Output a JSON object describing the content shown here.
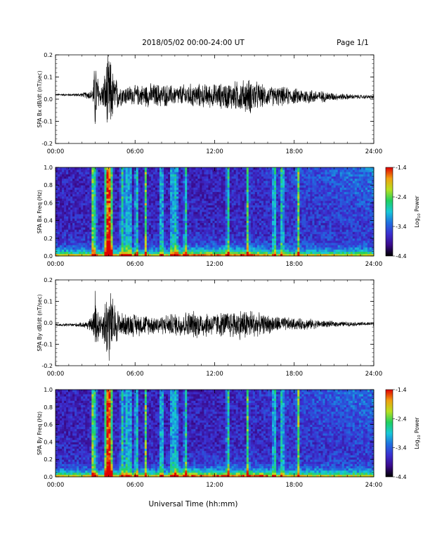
{
  "header": {
    "title": "2018/05/02  00:00-24:00 UT",
    "page": "Page 1/1"
  },
  "xlabel": "Universal Time (hh:mm)",
  "colors": {
    "trace": "#000000",
    "colormap": [
      "#000000",
      "#3a0a8a",
      "#3b2fd0",
      "#1f6fe0",
      "#18c8d8",
      "#20d060",
      "#b8e020",
      "#f0a010",
      "#e00000"
    ]
  },
  "chart_data": [
    {
      "type": "line",
      "title": "",
      "ylabel": "SPA Bx dB/dt (nT/sec)",
      "xlabel": "",
      "xlim": [
        0,
        24
      ],
      "ylim": [
        -0.2,
        0.2
      ],
      "xticks": [
        "00:00",
        "06:00",
        "12:00",
        "18:00",
        "24:00"
      ],
      "yticks": [
        "-0.2",
        "-0.1",
        "0.0",
        "0.1",
        "0.2"
      ],
      "series": [
        {
          "x": [
            0,
            1,
            2,
            2.8,
            3.0,
            3.3,
            3.6,
            3.9,
            4.1,
            4.4,
            5,
            6,
            7,
            8,
            9,
            10,
            11,
            12,
            13,
            14,
            14.8,
            15.5,
            16,
            17,
            18,
            19,
            20,
            21,
            22,
            23,
            24
          ],
          "y_amplitude": [
            0.005,
            0.006,
            0.01,
            0.03,
            0.2,
            0.05,
            0.07,
            0.2,
            0.2,
            0.1,
            0.05,
            0.05,
            0.06,
            0.06,
            0.05,
            0.06,
            0.06,
            0.06,
            0.07,
            0.08,
            0.09,
            0.06,
            0.05,
            0.05,
            0.04,
            0.04,
            0.03,
            0.02,
            0.015,
            0.01,
            0.01
          ],
          "y_offset": 0.02
        }
      ]
    },
    {
      "type": "heatmap",
      "title": "",
      "ylabel": "SPA Bx Freq (Hz)",
      "xlim": [
        0,
        24
      ],
      "ylim": [
        0,
        1.0
      ],
      "xticks": [
        "00:00",
        "06:00",
        "12:00",
        "18:00",
        "24:00"
      ],
      "yticks": [
        "0.0",
        "0.2",
        "0.4",
        "0.6",
        "0.8",
        "1.0"
      ],
      "colorbar": {
        "label": "Log10 Power",
        "range": [
          -4.4,
          -1.4
        ],
        "ticks": [
          "-1.4",
          "-2.4",
          "-3.4",
          "-4.4"
        ]
      },
      "spikes_hours": [
        2.8,
        3.0,
        3.9,
        4.1,
        5.0,
        5.3,
        5.6,
        6.1,
        6.8,
        8.0,
        8.8,
        9.1,
        9.8,
        13.0,
        14.5,
        16.5,
        17.1,
        18.3
      ]
    },
    {
      "type": "line",
      "title": "",
      "ylabel": "SPA By dB/dt (nT/sec)",
      "xlabel": "",
      "xlim": [
        0,
        24
      ],
      "ylim": [
        -0.2,
        0.2
      ],
      "xticks": [
        "00:00",
        "06:00",
        "12:00",
        "18:00",
        "24:00"
      ],
      "yticks": [
        "-0.2",
        "-0.1",
        "0.0",
        "0.1",
        "0.2"
      ],
      "series": [
        {
          "x": [
            0,
            1,
            2,
            2.8,
            3.0,
            3.3,
            3.6,
            3.9,
            4.1,
            4.4,
            5,
            6,
            7,
            8,
            9,
            10,
            11,
            12,
            13,
            14,
            14.8,
            15.5,
            16,
            17,
            18,
            19,
            20,
            21,
            22,
            23,
            24
          ],
          "y_amplitude": [
            0.006,
            0.008,
            0.012,
            0.04,
            0.2,
            0.06,
            0.08,
            0.2,
            0.2,
            0.12,
            0.06,
            0.06,
            0.05,
            0.05,
            0.06,
            0.07,
            0.07,
            0.06,
            0.07,
            0.08,
            0.08,
            0.05,
            0.05,
            0.04,
            0.03,
            0.03,
            0.02,
            0.015,
            0.012,
            0.01,
            0.01
          ],
          "y_offset": -0.01
        }
      ]
    },
    {
      "type": "heatmap",
      "title": "",
      "ylabel": "SPA By Freq (Hz)",
      "xlim": [
        0,
        24
      ],
      "ylim": [
        0,
        1.0
      ],
      "xticks": [
        "00:00",
        "06:00",
        "12:00",
        "18:00",
        "24:00"
      ],
      "yticks": [
        "0.0",
        "0.2",
        "0.4",
        "0.6",
        "0.8",
        "1.0"
      ],
      "colorbar": {
        "label": "Log10 Power",
        "range": [
          -4.4,
          -1.4
        ],
        "ticks": [
          "-1.4",
          "-2.4",
          "-3.4",
          "-4.4"
        ]
      },
      "spikes_hours": [
        2.8,
        3.0,
        3.9,
        4.1,
        5.0,
        5.3,
        5.6,
        6.1,
        6.8,
        8.0,
        8.8,
        9.1,
        9.8,
        13.0,
        14.5,
        16.5,
        17.1,
        18.3
      ]
    }
  ]
}
